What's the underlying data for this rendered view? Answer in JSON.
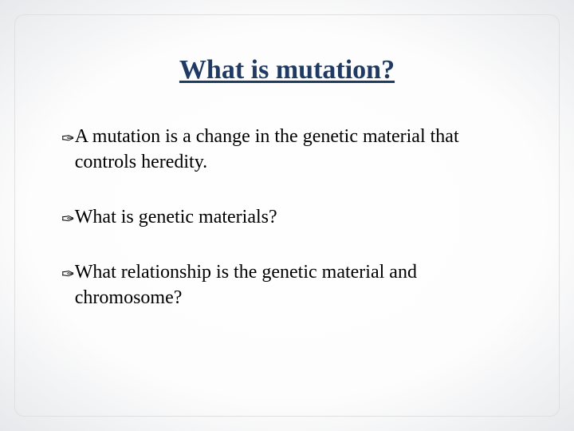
{
  "slide": {
    "title": "What is mutation?",
    "title_color": "#1f3a63",
    "title_fontsize": 34,
    "title_underline": true,
    "background_gradient": {
      "type": "radial",
      "center_color": "#fefefe",
      "edge_color": "#d4d6db"
    },
    "bullets": [
      {
        "text": "A mutation is a change in the genetic material that controls heredity."
      },
      {
        "text": "What is genetic materials?"
      },
      {
        "text": "What relationship is the genetic material and chromosome?"
      }
    ],
    "bullet_fontsize": 24,
    "bullet_color": "#000000",
    "bullet_glyph": "✑",
    "inner_border_color": "#e0e0e0",
    "inner_border_radius": 12
  }
}
